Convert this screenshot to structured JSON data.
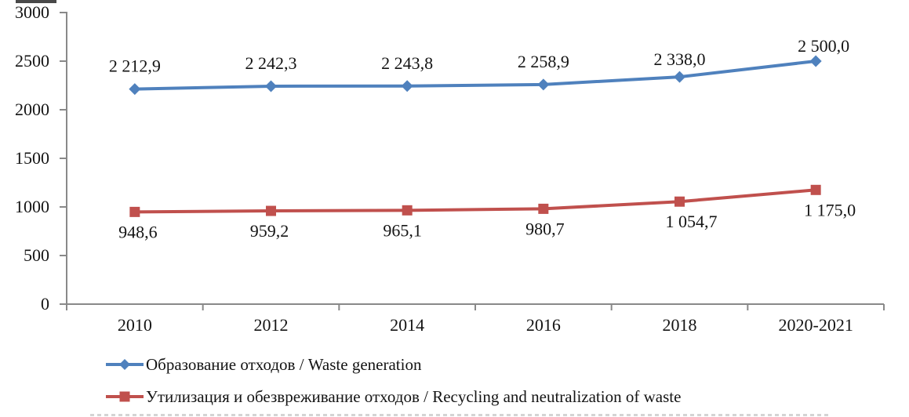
{
  "chart_data": {
    "type": "line",
    "title": "",
    "xlabel": "",
    "ylabel": "",
    "grid": false,
    "legend_position": "bottom-left",
    "axis_color": "#898989",
    "text_color": "#141414",
    "categories": [
      "2010",
      "2012",
      "2014",
      "2016",
      "2018",
      "2020-2021"
    ],
    "y_axis": {
      "min": 0,
      "max": 3000,
      "step": 500,
      "tick_labels": [
        "0",
        "500",
        "1000",
        "1500",
        "2000",
        "2500",
        "3000"
      ]
    },
    "series": [
      {
        "name": "Образование отходов / Waste generation",
        "color": "#4F81BD",
        "marker": "diamond",
        "label_position": "above",
        "values": [
          2212.9,
          2242.3,
          2243.8,
          2258.9,
          2338.0,
          2500.0
        ],
        "labels": [
          "2 212,9",
          "2 242,3",
          "2 243,8",
          "2 258,9",
          "2 338,0",
          "2 500,0"
        ],
        "label_dx": [
          0,
          0,
          0,
          0,
          0,
          10
        ],
        "label_dy": [
          0,
          0,
          0,
          0,
          7,
          10
        ]
      },
      {
        "name": "Утилизация и обезвреживание отходов / Recycling and neutralization of waste",
        "color": "#C0504D",
        "marker": "square",
        "label_position": "below",
        "values": [
          948.6,
          959.2,
          965.1,
          980.7,
          1054.7,
          1175.0
        ],
        "labels": [
          "948,6",
          "959,2",
          "965,1",
          "980,7",
          "1 054,7",
          "1 175,0"
        ],
        "label_dx": [
          4,
          -2,
          -6,
          2,
          15,
          18
        ],
        "label_dy": [
          0,
          0,
          0,
          0,
          0,
          0
        ]
      }
    ]
  }
}
